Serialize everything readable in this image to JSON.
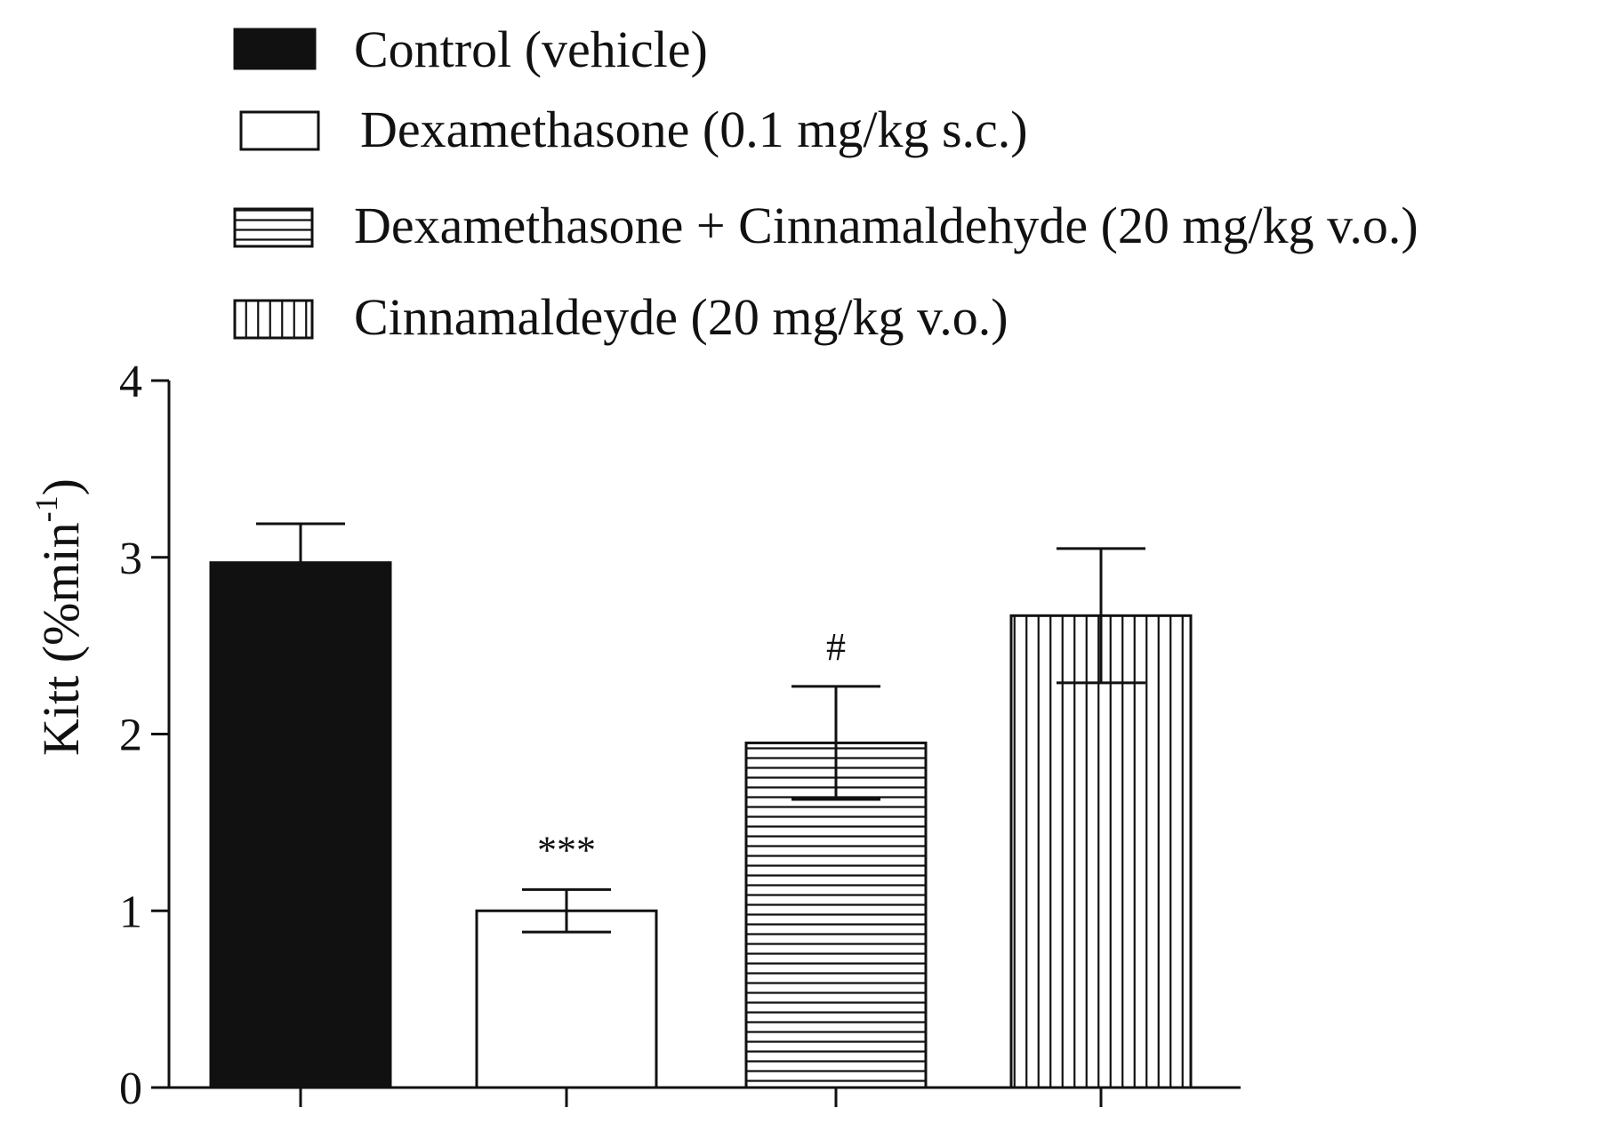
{
  "chart_data": {
    "type": "bar",
    "title": "",
    "xlabel": "",
    "ylabel": {
      "main": "Kitt (%min",
      "superscript": "-1",
      "close": ")"
    },
    "ylim": [
      0,
      4
    ],
    "yticks": [
      "0",
      "1",
      "2",
      "3",
      "4"
    ],
    "categories": [
      "Control (vehicle)",
      "Dexamethasone (0.1 mg/kg s.c.)",
      "Dexamethasone + Cinnamaldehyde (20 mg/kg v.o.)",
      "Cinnamaldeyde (20 mg/kg v.o.)"
    ],
    "values": [
      2.97,
      1.0,
      1.95,
      2.67
    ],
    "errors": [
      0.22,
      0.12,
      0.32,
      0.38
    ],
    "patterns": [
      "solid-black",
      "white",
      "horizontal-lines",
      "vertical-lines"
    ],
    "annotations": [
      "",
      "***",
      "#",
      ""
    ],
    "legend": {
      "position": "top",
      "entries": [
        "Control (vehicle)",
        "Dexamethasone (0.1 mg/kg s.c.)",
        "Dexamethasone + Cinnamaldehyde (20 mg/kg v.o.)",
        "Cinnamaldeyde (20 mg/kg v.o.)"
      ]
    },
    "colors": {
      "ink": "#111111",
      "background": "#ffffff"
    }
  }
}
